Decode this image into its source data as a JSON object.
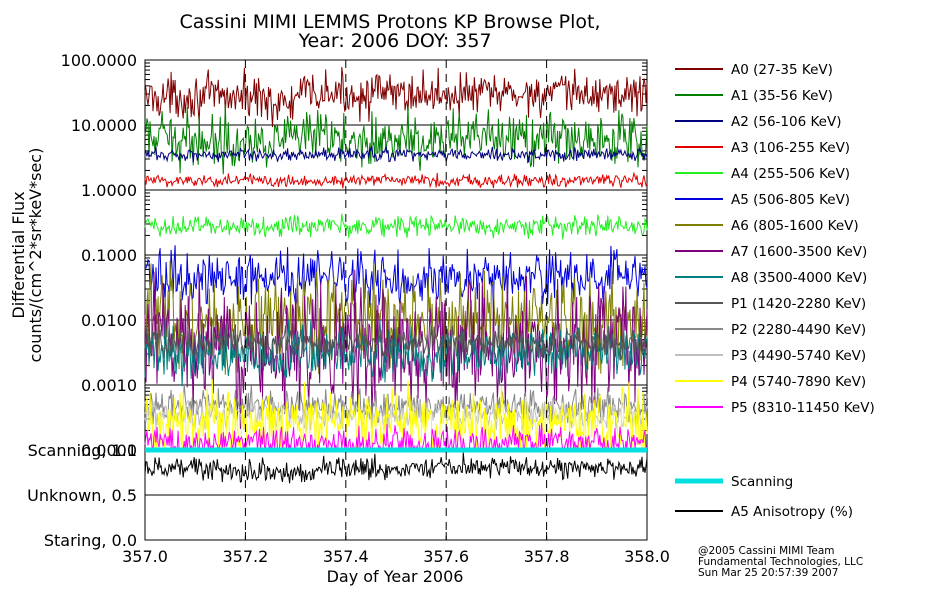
{
  "chart_data": {
    "type": "line",
    "title_line1": "Cassini MIMI LEMMS Protons KP Browse Plot,",
    "title_line2": "Year: 2006 DOY: 357",
    "xlabel": "Day of Year 2006",
    "ylabel_line1": "Differential Flux",
    "ylabel_line2": "counts/(cm^2*sr*keV*sec)",
    "x_range": [
      357.0,
      358.0
    ],
    "x_ticks": [
      357.0,
      357.2,
      357.4,
      357.6,
      357.8,
      358.0
    ],
    "x_tick_labels": [
      "357.0",
      "357.2",
      "357.4",
      "357.6",
      "357.8",
      "358.0"
    ],
    "y_scale": "log",
    "y_range": [
      0.0001,
      100
    ],
    "y_ticks": [
      100,
      10,
      1,
      0.1,
      0.01,
      0.001,
      0.0001
    ],
    "y_tick_labels": [
      "100.0000",
      "10.0000",
      "1.0000",
      "0.1000",
      "0.0100",
      "0.0010",
      "0.0001"
    ],
    "series": [
      {
        "name": "A0 (27-35 KeV)",
        "color": "#7f0000",
        "median": 30,
        "spread": 0.16,
        "dip": true
      },
      {
        "name": "A1 (35-56 KeV)",
        "color": "#007f00",
        "median": 6,
        "spread": 0.2
      },
      {
        "name": "A2 (56-106 KeV)",
        "color": "#00007f",
        "median": 3.5,
        "spread": 0.05
      },
      {
        "name": "A3 (106-255 KeV)",
        "color": "#e00000",
        "median": 1.4,
        "spread": 0.05
      },
      {
        "name": "A4 (255-506 KeV)",
        "color": "#22ee22",
        "median": 0.28,
        "spread": 0.08
      },
      {
        "name": "A5 (506-805 KeV)",
        "color": "#0000dd",
        "median": 0.045,
        "spread": 0.2
      },
      {
        "name": "A6 (805-1600 KeV)",
        "color": "#7f7f00",
        "median": 0.01,
        "spread": 0.35
      },
      {
        "name": "A7 (1600-3500 KeV)",
        "color": "#7f007f",
        "median": 0.004,
        "spread": 0.45
      },
      {
        "name": "A8 (3500-4000 KeV)",
        "color": "#007f7f",
        "median": 0.003,
        "spread": 0.2
      },
      {
        "name": "P1 (1420-2280 KeV)",
        "color": "#555555",
        "median": 0.0045,
        "spread": 0.12
      },
      {
        "name": "P2 (2280-4490 KeV)",
        "color": "#888888",
        "median": 0.0005,
        "spread": 0.12
      },
      {
        "name": "P3 (4490-5740 KeV)",
        "color": "#c0c0c0",
        "median": 0.00035,
        "spread": 0.1
      },
      {
        "name": "P4 (5740-7890 KeV)",
        "color": "#ffff00",
        "median": 0.00025,
        "spread": 0.25
      },
      {
        "name": "P5 (8310-11450 KeV)",
        "color": "#ff00ff",
        "median": 0.00013,
        "spread": 0.12
      }
    ],
    "lower_panel": {
      "y_tick_labels": [
        "Scanning, 1.0",
        "Unknown, 0.5",
        "Staring, 0.0"
      ],
      "y_ticks": [
        1.0,
        0.5,
        0.0
      ],
      "y_range": [
        0.0,
        1.0
      ],
      "series": [
        {
          "name": "Scanning",
          "color": "#00e0e0",
          "value": 1.0
        },
        {
          "name": "A5 Anisotropy (%)",
          "color": "#000000",
          "median": 0.8,
          "spread": 0.06
        }
      ]
    },
    "footer": [
      "@2005 Cassini MIMI Team",
      "Fundamental Technologies, LLC",
      "Sun Mar 25 20:57:39 2007"
    ]
  }
}
